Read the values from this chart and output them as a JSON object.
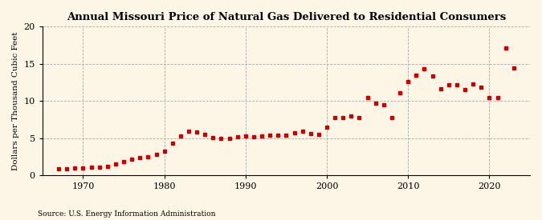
{
  "title": "Annual Missouri Price of Natural Gas Delivered to Residential Consumers",
  "ylabel": "Dollars per Thousand Cubic Feet",
  "source": "Source: U.S. Energy Information Administration",
  "background_color": "#fdf5e6",
  "plot_background_color": "#fdf5e6",
  "marker_color": "#cc0000",
  "grid_color": "#aaaaaa",
  "ylim": [
    0,
    20
  ],
  "yticks": [
    0,
    5,
    10,
    15,
    20
  ],
  "xlim": [
    1965,
    2025
  ],
  "xticks": [
    1970,
    1980,
    1990,
    2000,
    2010,
    2020
  ],
  "years": [
    1967,
    1968,
    1969,
    1970,
    1971,
    1972,
    1973,
    1974,
    1975,
    1976,
    1977,
    1978,
    1979,
    1980,
    1981,
    1982,
    1983,
    1984,
    1985,
    1986,
    1987,
    1988,
    1989,
    1990,
    1991,
    1992,
    1993,
    1994,
    1995,
    1996,
    1997,
    1998,
    1999,
    2000,
    2001,
    2002,
    2003,
    2004,
    2005,
    2006,
    2007,
    2008,
    2009,
    2010,
    2011,
    2012,
    2013,
    2014,
    2015,
    2016,
    2017,
    2018,
    2019,
    2020,
    2021,
    2022,
    2023
  ],
  "values": [
    0.87,
    0.9,
    0.95,
    1.0,
    1.06,
    1.11,
    1.2,
    1.47,
    1.85,
    2.1,
    2.35,
    2.52,
    2.8,
    3.18,
    4.28,
    5.25,
    5.9,
    5.8,
    5.5,
    5.08,
    5.0,
    4.98,
    5.12,
    5.25,
    5.16,
    5.28,
    5.4,
    5.34,
    5.43,
    5.67,
    5.91,
    5.61,
    5.53,
    6.46,
    7.8,
    7.78,
    8.02,
    7.79,
    10.4,
    9.64,
    9.5,
    7.8,
    11.1,
    12.62,
    13.5,
    14.35,
    13.35,
    11.58,
    12.22,
    12.15,
    11.57,
    12.25,
    11.89,
    10.45,
    10.44,
    17.13,
    14.39
  ]
}
